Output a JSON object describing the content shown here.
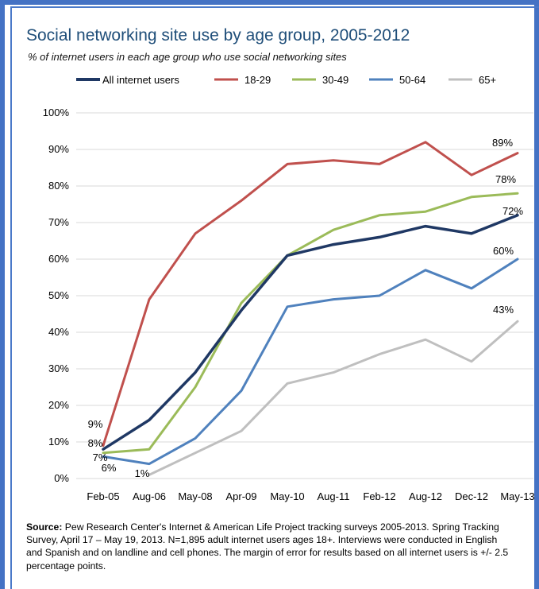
{
  "colors": {
    "frame": "#4472c4",
    "title": "#1f4e79",
    "grid": "#d9d9d9",
    "All internet users": "#1f3864",
    "18-29": "#c0504d",
    "30-49": "#9bbb59",
    "50-64": "#4f81bd",
    "65+": "#bfbfbf"
  },
  "header": {
    "title": "Social networking site use by age group, 2005-2012",
    "subtitle": "% of internet users in each age group who use social networking sites"
  },
  "source": {
    "label": "Source:",
    "text": "Pew Research Center's Internet & American Life Project tracking surveys 2005-2013. Spring Tracking Survey, April 17 – May 19, 2013. N=1,895 adult internet users ages 18+. Interviews were conducted in English and Spanish and on landline and cell phones.  The margin of error for results based on all internet users is +/- 2.5 percentage points."
  },
  "chart_data": {
    "type": "line",
    "title": "Social networking site use by age group, 2005-2012",
    "subtitle": "% of internet users in each age group who use social networking sites",
    "x": [
      "Feb-05",
      "Aug-06",
      "May-08",
      "Apr-09",
      "May-10",
      "Aug-11",
      "Feb-12",
      "Aug-12",
      "Dec-12",
      "May-13"
    ],
    "ylim": [
      0,
      100
    ],
    "yticks": [
      0,
      10,
      20,
      30,
      40,
      50,
      60,
      70,
      80,
      90,
      100
    ],
    "ytick_labels": [
      "0%",
      "10%",
      "20%",
      "30%",
      "40%",
      "50%",
      "60%",
      "70%",
      "80%",
      "90%",
      "100%"
    ],
    "grid": true,
    "legend_position": "top",
    "series": [
      {
        "name": "All internet users",
        "values": [
          8,
          16,
          29,
          46,
          61,
          64,
          66,
          69,
          67,
          72
        ]
      },
      {
        "name": "18-29",
        "values": [
          9,
          49,
          67,
          76,
          86,
          87,
          86,
          92,
          83,
          89
        ]
      },
      {
        "name": "30-49",
        "values": [
          7,
          8,
          25,
          48,
          61,
          68,
          72,
          73,
          77,
          78
        ]
      },
      {
        "name": "50-64",
        "values": [
          6,
          4,
          11,
          24,
          47,
          49,
          50,
          57,
          52,
          60
        ]
      },
      {
        "name": "65+",
        "values": [
          null,
          1,
          7,
          13,
          26,
          29,
          34,
          38,
          32,
          43
        ]
      }
    ],
    "data_labels": [
      {
        "series": "18-29",
        "index": 0,
        "text": "9%"
      },
      {
        "series": "All internet users",
        "index": 0,
        "text": "8%"
      },
      {
        "series": "30-49",
        "index": 0,
        "text": "7%"
      },
      {
        "series": "50-64",
        "index": 0,
        "text": "6%"
      },
      {
        "series": "65+",
        "index": 1,
        "text": "1%"
      },
      {
        "series": "18-29",
        "index": 9,
        "text": "89%"
      },
      {
        "series": "30-49",
        "index": 9,
        "text": "78%"
      },
      {
        "series": "All internet users",
        "index": 9,
        "text": "72%"
      },
      {
        "series": "50-64",
        "index": 9,
        "text": "60%"
      },
      {
        "series": "65+",
        "index": 9,
        "text": "43%"
      }
    ]
  }
}
